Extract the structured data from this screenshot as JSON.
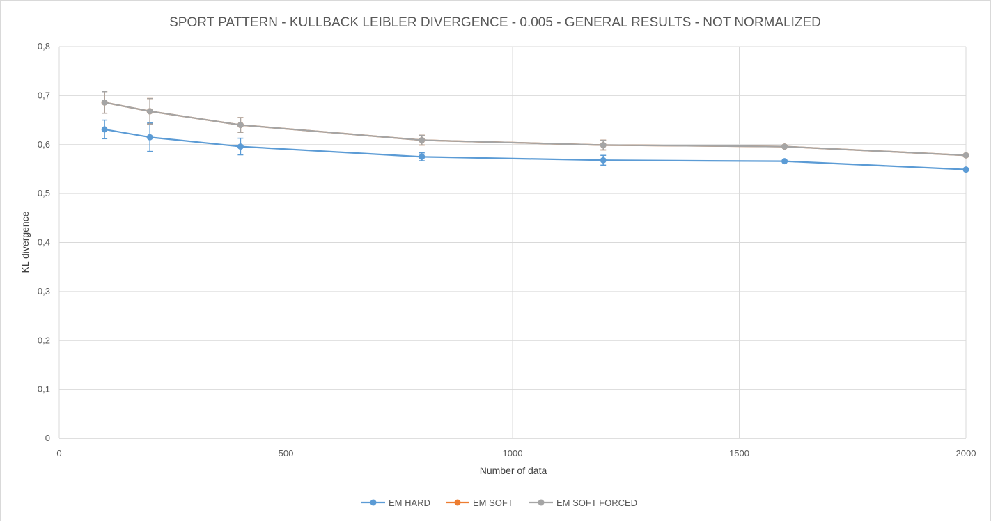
{
  "chart_data": {
    "type": "line",
    "title": "SPORT PATTERN - KULLBACK LEIBLER DIVERGENCE - 0.005 - GENERAL RESULTS - NOT NORMALIZED",
    "xlabel": "Number of data",
    "ylabel": "KL divergence",
    "xlim": [
      0,
      2000
    ],
    "ylim": [
      0,
      0.8
    ],
    "x_ticks": [
      {
        "value": 0,
        "label": "0"
      },
      {
        "value": 500,
        "label": "500"
      },
      {
        "value": 1000,
        "label": "1000"
      },
      {
        "value": 1500,
        "label": "1500"
      },
      {
        "value": 2000,
        "label": "2000"
      }
    ],
    "y_ticks": [
      {
        "value": 0,
        "label": "0"
      },
      {
        "value": 0.1,
        "label": "0,1"
      },
      {
        "value": 0.2,
        "label": "0,2"
      },
      {
        "value": 0.3,
        "label": "0,3"
      },
      {
        "value": 0.4,
        "label": "0,4"
      },
      {
        "value": 0.5,
        "label": "0,5"
      },
      {
        "value": 0.6,
        "label": "0,6"
      },
      {
        "value": 0.7,
        "label": "0,7"
      },
      {
        "value": 0.8,
        "label": "0,8"
      }
    ],
    "grid": true,
    "legend_position": "bottom",
    "x": [
      100,
      200,
      400,
      800,
      1200,
      1600,
      2000
    ],
    "series": [
      {
        "name": "EM HARD",
        "color": "#5b9bd5",
        "values": [
          0.631,
          0.615,
          0.596,
          0.575,
          0.568,
          0.566,
          0.549
        ],
        "errors": [
          0.019,
          0.029,
          0.017,
          0.008,
          0.01,
          0.0,
          0.0
        ]
      },
      {
        "name": "EM SOFT",
        "color": "#ed7d31",
        "values": [
          0.686,
          0.668,
          0.64,
          0.609,
          0.599,
          0.596,
          0.578
        ],
        "errors": [
          0.022,
          0.026,
          0.015,
          0.01,
          0.01,
          0.0,
          0.0
        ]
      },
      {
        "name": "EM SOFT FORCED",
        "color": "#a5a5a5",
        "values": [
          0.686,
          0.668,
          0.64,
          0.609,
          0.599,
          0.596,
          0.578
        ],
        "errors": [
          0.022,
          0.026,
          0.015,
          0.01,
          0.01,
          0.0,
          0.0
        ]
      }
    ]
  }
}
